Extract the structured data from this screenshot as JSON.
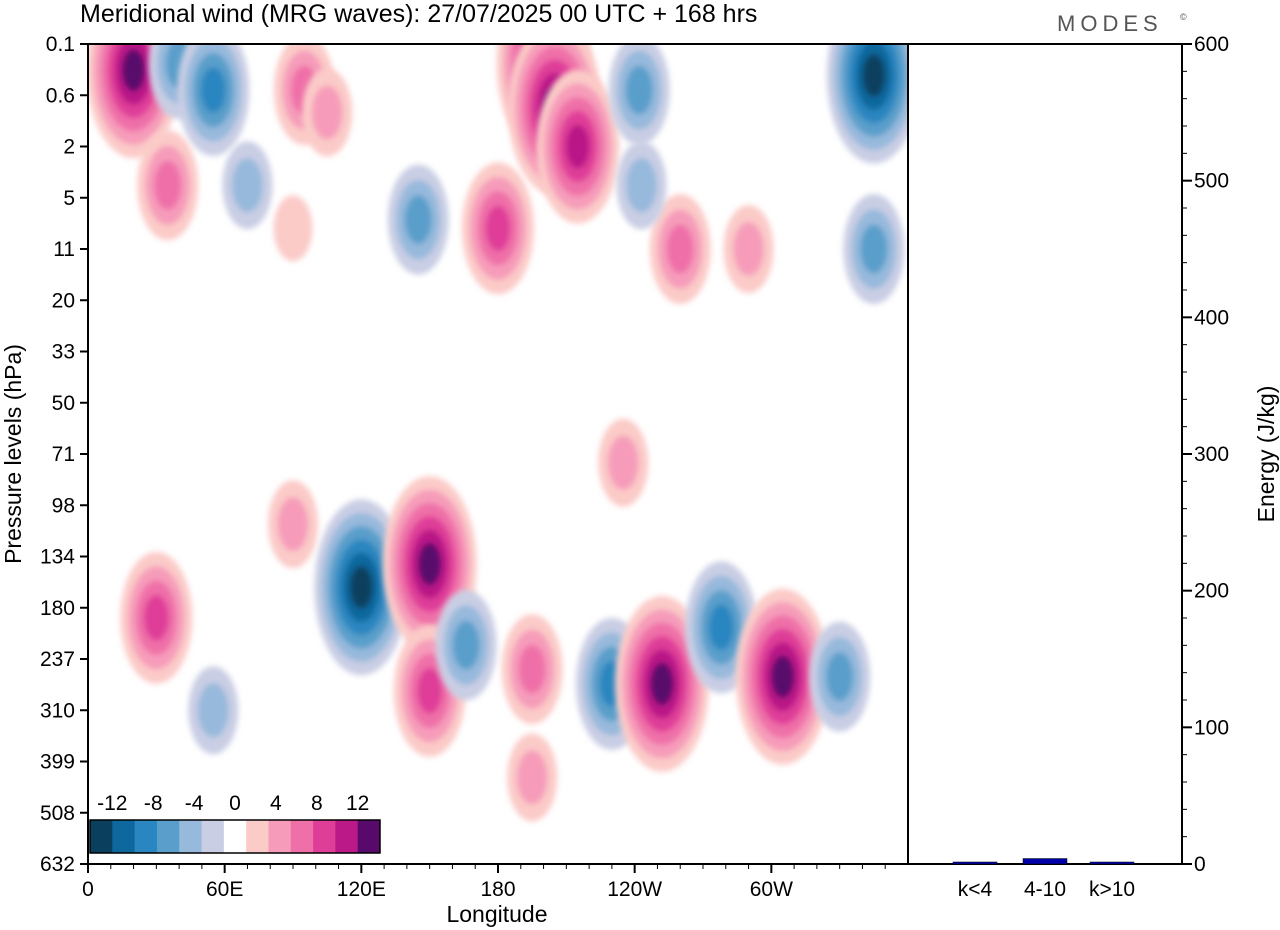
{
  "title": "Meridional wind (MRG waves):  27/07/2025  00 UTC  + 168 hrs",
  "logo": "MODES",
  "logo_mark": "©",
  "chart_data": [
    {
      "type": "heatmap",
      "title": "Meridional wind (MRG waves):  27/07/2025  00 UTC  + 168 hrs",
      "xlabel": "Longitude",
      "ylabel": "Pressure levels (hPa)",
      "x_ticks": [
        "0",
        "60E",
        "120E",
        "180",
        "120W",
        "60W"
      ],
      "y_ticks": [
        "0.1",
        "0.6",
        "2",
        "5",
        "11",
        "20",
        "33",
        "50",
        "71",
        "98",
        "134",
        "180",
        "237",
        "310",
        "399",
        "508",
        "632"
      ],
      "colorbar": {
        "labels": [
          "-12",
          "-8",
          "-4",
          "0",
          "4",
          "8",
          "12"
        ],
        "bins": [
          {
            "range": [
              -14,
              -12
            ],
            "color": "#0a3f5e"
          },
          {
            "range": [
              -12,
              -10
            ],
            "color": "#0e689e"
          },
          {
            "range": [
              -10,
              -8
            ],
            "color": "#2a86c0"
          },
          {
            "range": [
              -8,
              -6
            ],
            "color": "#5a9fcb"
          },
          {
            "range": [
              -6,
              -4
            ],
            "color": "#97b9dc"
          },
          {
            "range": [
              -4,
              -2
            ],
            "color": "#c9cee4"
          },
          {
            "range": [
              -2,
              2
            ],
            "color": "#ffffff"
          },
          {
            "range": [
              2,
              4
            ],
            "color": "#fbcbc8"
          },
          {
            "range": [
              4,
              6
            ],
            "color": "#f69cba"
          },
          {
            "range": [
              6,
              8
            ],
            "color": "#ef6fa8"
          },
          {
            "range": [
              8,
              10
            ],
            "color": "#df3e98"
          },
          {
            "range": [
              10,
              12
            ],
            "color": "#ba1987"
          },
          {
            "range": [
              12,
              14
            ],
            "color": "#580a6c"
          }
        ]
      },
      "features": [
        {
          "lon": 20,
          "p": 0.25,
          "v": 13
        },
        {
          "lon": 40,
          "p": 0.2,
          "v": -8
        },
        {
          "lon": 55,
          "p": 0.5,
          "v": -9
        },
        {
          "lon": 95,
          "p": 0.5,
          "v": 8
        },
        {
          "lon": 105,
          "p": 0.9,
          "v": 6
        },
        {
          "lon": 35,
          "p": 4,
          "v": 8
        },
        {
          "lon": 70,
          "p": 4,
          "v": -5
        },
        {
          "lon": 90,
          "p": 8,
          "v": 4
        },
        {
          "lon": 180,
          "p": 8,
          "v": 9
        },
        {
          "lon": 145,
          "p": 7,
          "v": -7
        },
        {
          "lon": 200,
          "p": 0.2,
          "v": 14
        },
        {
          "lon": 205,
          "p": 0.8,
          "v": 13
        },
        {
          "lon": 215,
          "p": 2,
          "v": 11
        },
        {
          "lon": 242,
          "p": 0.5,
          "v": -8
        },
        {
          "lon": 260,
          "p": 11,
          "v": 8
        },
        {
          "lon": 290,
          "p": 11,
          "v": 6
        },
        {
          "lon": 243,
          "p": 4,
          "v": -6
        },
        {
          "lon": 345,
          "p": 0.3,
          "v": -14
        },
        {
          "lon": 345,
          "p": 11,
          "v": -7
        },
        {
          "lon": 30,
          "p": 190,
          "v": 9
        },
        {
          "lon": 55,
          "p": 310,
          "v": -5
        },
        {
          "lon": 120,
          "p": 160,
          "v": -13
        },
        {
          "lon": 150,
          "p": 140,
          "v": 14
        },
        {
          "lon": 150,
          "p": 280,
          "v": 10
        },
        {
          "lon": 166,
          "p": 220,
          "v": -8
        },
        {
          "lon": 195,
          "p": 250,
          "v": 7
        },
        {
          "lon": 195,
          "p": 430,
          "v": 5
        },
        {
          "lon": 230,
          "p": 270,
          "v": -10
        },
        {
          "lon": 252,
          "p": 270,
          "v": 13
        },
        {
          "lon": 278,
          "p": 200,
          "v": -10
        },
        {
          "lon": 305,
          "p": 260,
          "v": 14
        },
        {
          "lon": 330,
          "p": 260,
          "v": -7
        },
        {
          "lon": 235,
          "p": 75,
          "v": 6
        },
        {
          "lon": 90,
          "p": 110,
          "v": 5
        }
      ]
    },
    {
      "type": "bar",
      "categories": [
        "k<4",
        "4-10",
        "k>10"
      ],
      "values": [
        1,
        4,
        0.5
      ],
      "ylabel": "Energy (J/kg)",
      "ylim": [
        0,
        600
      ],
      "y_ticks": [
        "0",
        "100",
        "200",
        "300",
        "400",
        "500",
        "600"
      ],
      "bar_color": "#0000aa"
    }
  ]
}
